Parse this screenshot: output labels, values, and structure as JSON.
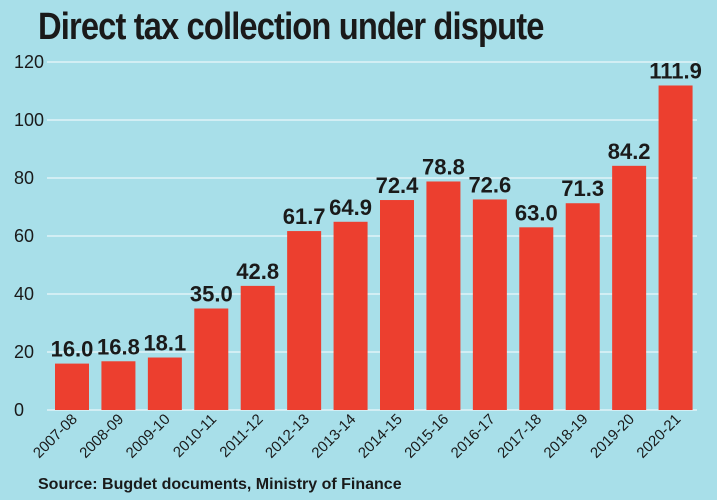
{
  "chart_data": {
    "type": "bar",
    "title": "Direct tax collection under dispute",
    "source": "Source: Bugdet documents, Ministry of Finance",
    "categories": [
      "2007-08",
      "2008-09",
      "2009-10",
      "2010-11",
      "2011-12",
      "2012-13",
      "2013-14",
      "2014-15",
      "2015-16",
      "2016-17",
      "2017-18",
      "2018-19",
      "2019-20",
      "2020-21"
    ],
    "values": [
      16.0,
      16.8,
      18.1,
      35.0,
      42.8,
      61.7,
      64.9,
      72.4,
      78.8,
      72.6,
      63.0,
      71.3,
      84.2,
      111.9
    ],
    "value_labels": [
      "16.0",
      "16.8",
      "18.1",
      "35.0",
      "42.8",
      "61.7",
      "64.9",
      "72.4",
      "78.8",
      "72.6",
      "63.0",
      "71.3",
      "84.2",
      "111.9"
    ],
    "yticks": [
      "0",
      "20",
      "40",
      "60",
      "80",
      "100",
      "120"
    ],
    "ylim": [
      0,
      120
    ],
    "grid": true,
    "colors": {
      "background": "#a8dfe9",
      "bar": "#ec3f2f",
      "gridline": "#dff3f7",
      "text": "#1a1a1a"
    }
  }
}
